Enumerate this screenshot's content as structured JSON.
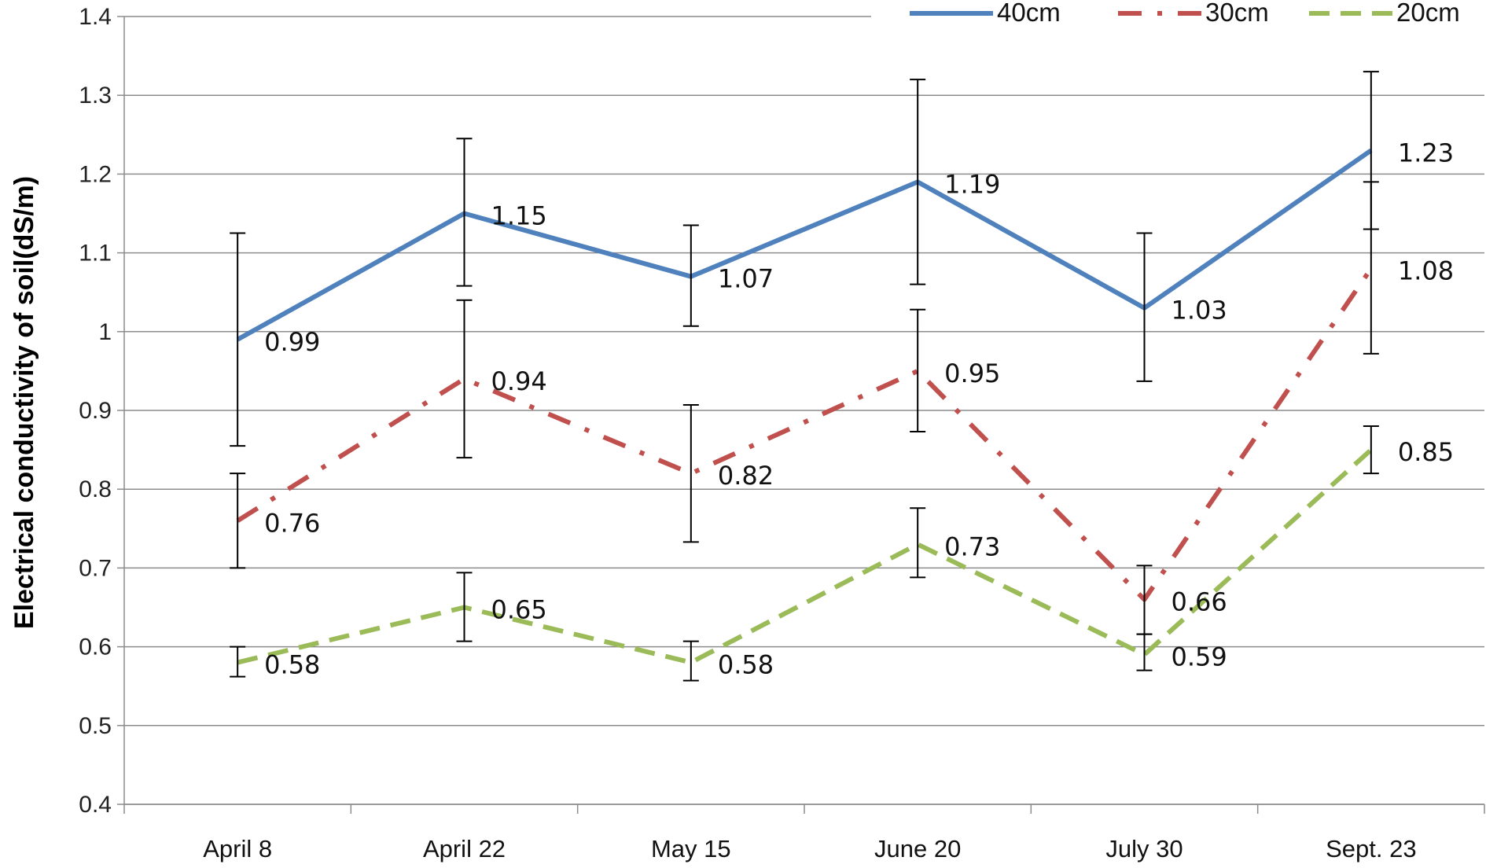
{
  "chart_data": {
    "type": "line",
    "title": "",
    "xlabel": "",
    "ylabel": "Electrical  conductivity  of  soil(dS/m)",
    "ylim": [
      0.4,
      1.4
    ],
    "yticks": [
      "0.4",
      "0.5",
      "0.6",
      "0.7",
      "0.8",
      "0.9",
      "1",
      "1.1",
      "1.2",
      "1.3",
      "1.4"
    ],
    "grid": "horizontal",
    "legend_position": "top-right",
    "categories": [
      "April 8",
      "April 22",
      "May 15",
      "June 20",
      "July 30",
      "Sept. 23"
    ],
    "series": [
      {
        "name": "40cm",
        "color": "#4F81BD",
        "dash": "solid",
        "values": [
          0.99,
          1.15,
          1.07,
          1.19,
          1.03,
          1.23
        ],
        "labels": [
          "0.99",
          "1.15",
          "1.07",
          "1.19",
          "1.03",
          "1.23"
        ],
        "err_low": [
          0.855,
          1.058,
          1.007,
          1.06,
          0.937,
          1.13
        ],
        "err_high": [
          1.125,
          1.245,
          1.135,
          1.32,
          1.125,
          1.33
        ]
      },
      {
        "name": "30cm",
        "color": "#C0504D",
        "dash": "dashdot",
        "values": [
          0.76,
          0.94,
          0.82,
          0.95,
          0.66,
          1.08
        ],
        "labels": [
          "0.76",
          "0.94",
          "0.82",
          "0.95",
          "0.66",
          "1.08"
        ],
        "err_low": [
          0.7,
          0.84,
          0.733,
          0.873,
          0.616,
          0.972
        ],
        "err_high": [
          0.82,
          1.04,
          0.907,
          1.028,
          0.703,
          1.19
        ]
      },
      {
        "name": "20cm",
        "color": "#9BBB59",
        "dash": "dashed",
        "values": [
          0.58,
          0.65,
          0.58,
          0.73,
          0.59,
          0.85
        ],
        "labels": [
          "0.58",
          "0.65",
          "0.58",
          "0.73",
          "0.59",
          "0.85"
        ],
        "err_low": [
          0.562,
          0.607,
          0.557,
          0.688,
          0.57,
          0.82
        ],
        "err_high": [
          0.6,
          0.694,
          0.607,
          0.776,
          0.616,
          0.88
        ]
      }
    ]
  }
}
